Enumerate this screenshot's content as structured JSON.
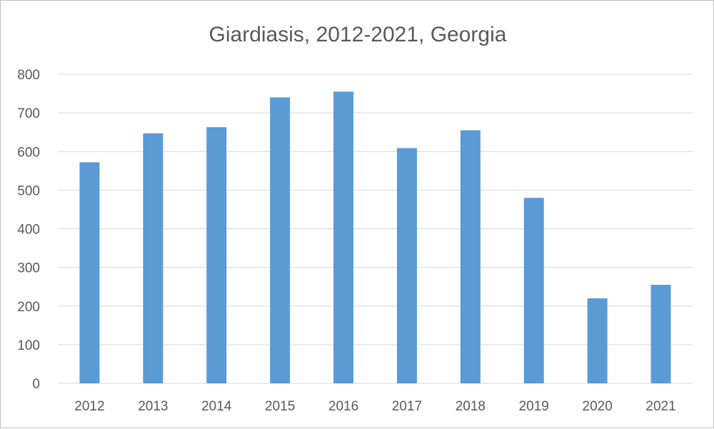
{
  "chart_data": {
    "type": "bar",
    "title": "Giardiasis, 2012-2021, Georgia",
    "xlabel": "",
    "ylabel": "",
    "categories": [
      "2012",
      "2013",
      "2014",
      "2015",
      "2016",
      "2017",
      "2018",
      "2019",
      "2020",
      "2021"
    ],
    "values": [
      572,
      647,
      663,
      740,
      755,
      609,
      655,
      480,
      220,
      255
    ],
    "ylim": [
      0,
      800
    ],
    "yticks": [
      "0",
      "100",
      "200",
      "300",
      "400",
      "500",
      "600",
      "700",
      "800"
    ],
    "grid": true,
    "legend": "none",
    "colors": {
      "bar": "#5b9bd5",
      "grid": "#d9d9d9",
      "text": "#595959"
    }
  }
}
